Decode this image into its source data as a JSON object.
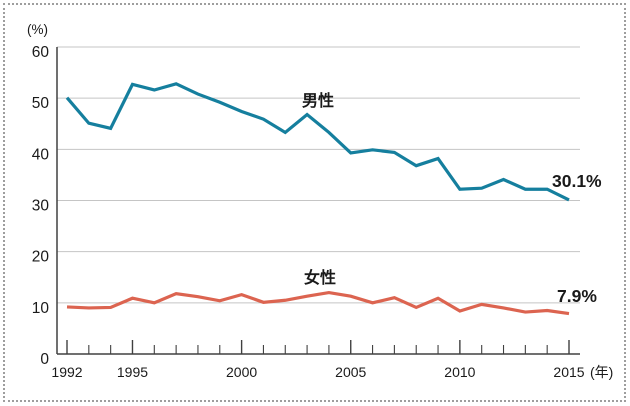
{
  "chart_data": {
    "type": "line",
    "title": "",
    "y_unit_label": "(%)",
    "x_unit_label": "(年)",
    "grid": "horizontal",
    "ylim": [
      0,
      60
    ],
    "yticks": [
      0,
      10,
      20,
      30,
      40,
      50,
      60
    ],
    "x": [
      1992,
      1993,
      1994,
      1995,
      1996,
      1997,
      1998,
      1999,
      2000,
      2001,
      2002,
      2003,
      2004,
      2005,
      2006,
      2007,
      2008,
      2009,
      2010,
      2011,
      2012,
      2013,
      2014,
      2015
    ],
    "labeled_years": [
      1992,
      1995,
      2000,
      2005,
      2010,
      2015
    ],
    "xtick_labels": [
      "1992",
      "1995",
      "2000",
      "2005",
      "2010",
      "2015"
    ],
    "series": [
      {
        "key": "male",
        "name": "男性",
        "color": "#157f9e",
        "end_label": "30.1%",
        "values": [
          50.1,
          45.1,
          44.1,
          52.7,
          51.6,
          52.8,
          50.8,
          49.2,
          47.4,
          45.9,
          43.3,
          46.8,
          43.3,
          39.3,
          39.9,
          39.4,
          36.8,
          38.2,
          32.2,
          32.4,
          34.1,
          32.2,
          32.2,
          30.1
        ]
      },
      {
        "key": "female",
        "name": "女性",
        "color": "#dc6450",
        "end_label": "7.9%",
        "values": [
          9.2,
          9.0,
          9.1,
          10.9,
          10.0,
          11.8,
          11.2,
          10.4,
          11.6,
          10.1,
          10.5,
          11.3,
          12.0,
          11.3,
          10.0,
          11.0,
          9.1,
          10.9,
          8.4,
          9.7,
          9.0,
          8.2,
          8.5,
          7.9
        ]
      }
    ]
  },
  "colors": {
    "grid": "#c5c5c5",
    "axis": "#404040",
    "text": "#1a1a1a",
    "male_line": "#157f9e",
    "female_line": "#dc6450",
    "frame_dots": "#9e9e9e"
  }
}
